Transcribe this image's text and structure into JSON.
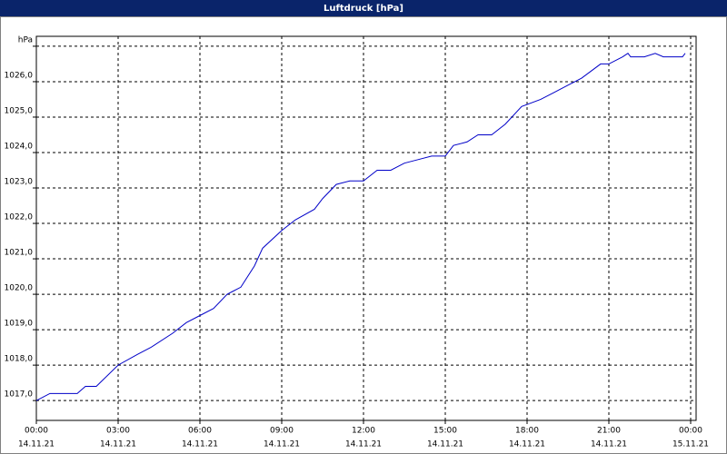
{
  "chart_data": {
    "type": "line",
    "title": "Luftdruck [hPa]",
    "x": [
      0,
      0.5,
      1.5,
      1.8,
      2.2,
      3,
      3.7,
      4.2,
      5,
      5.5,
      6,
      6.5,
      7,
      7.5,
      8,
      8.3,
      9,
      9.5,
      10.2,
      10.5,
      11,
      11.5,
      12,
      12.5,
      13,
      13.5,
      14,
      14.5,
      15,
      15.3,
      15.8,
      16.2,
      16.7,
      17.2,
      17.8,
      18.5,
      19,
      19.5,
      20,
      20.7,
      21,
      21.5,
      21.7,
      21.8,
      22.3,
      22.7,
      23,
      23.7,
      23.8
    ],
    "series": [
      {
        "name": "Luftdruck",
        "color": "#0000c8",
        "values": [
          1017.0,
          1017.2,
          1017.2,
          1017.4,
          1017.4,
          1018.0,
          1018.3,
          1018.5,
          1018.9,
          1019.2,
          1019.4,
          1019.6,
          1020.0,
          1020.2,
          1020.8,
          1021.3,
          1021.8,
          1022.1,
          1022.4,
          1022.7,
          1023.1,
          1023.2,
          1023.2,
          1023.5,
          1023.5,
          1023.7,
          1023.8,
          1023.9,
          1023.9,
          1024.2,
          1024.3,
          1024.5,
          1024.5,
          1024.8,
          1025.3,
          1025.5,
          1025.7,
          1025.9,
          1026.1,
          1026.5,
          1026.5,
          1026.7,
          1026.8,
          1026.7,
          1026.7,
          1026.8,
          1026.7,
          1026.7,
          1026.8
        ]
      }
    ],
    "xlim": [
      0,
      24.2
    ],
    "xticks": [
      {
        "value": 0,
        "label": "00:00"
      },
      {
        "value": 3,
        "label": "03:00"
      },
      {
        "value": 6,
        "label": "06:00"
      },
      {
        "value": 9,
        "label": "09:00"
      },
      {
        "value": 12,
        "label": "12:00"
      },
      {
        "value": 15,
        "label": "15:00"
      },
      {
        "value": 18,
        "label": "18:00"
      },
      {
        "value": 21,
        "label": "21:00"
      },
      {
        "value": 24,
        "label": "00:00"
      }
    ],
    "xtick_dates": [
      "14.11.21",
      "14.11.21",
      "14.11.21",
      "14.11.21",
      "14.11.21",
      "14.11.21",
      "14.11.21",
      "14.11.21",
      "15.11.21"
    ],
    "ylim": [
      1016.44,
      1027.28
    ],
    "yticks": [
      {
        "value": 1017,
        "label": "1017,0"
      },
      {
        "value": 1018,
        "label": "1018,0"
      },
      {
        "value": 1019,
        "label": "1019,0"
      },
      {
        "value": 1020,
        "label": "1020,0"
      },
      {
        "value": 1021,
        "label": "1021,0"
      },
      {
        "value": 1022,
        "label": "1022,0"
      },
      {
        "value": 1023,
        "label": "1023,0"
      },
      {
        "value": 1024,
        "label": "1024,0"
      },
      {
        "value": 1025,
        "label": "1025,0"
      },
      {
        "value": 1026,
        "label": "1026,0"
      },
      {
        "value": 1027,
        "label": "hPa"
      }
    ],
    "grid": true
  }
}
